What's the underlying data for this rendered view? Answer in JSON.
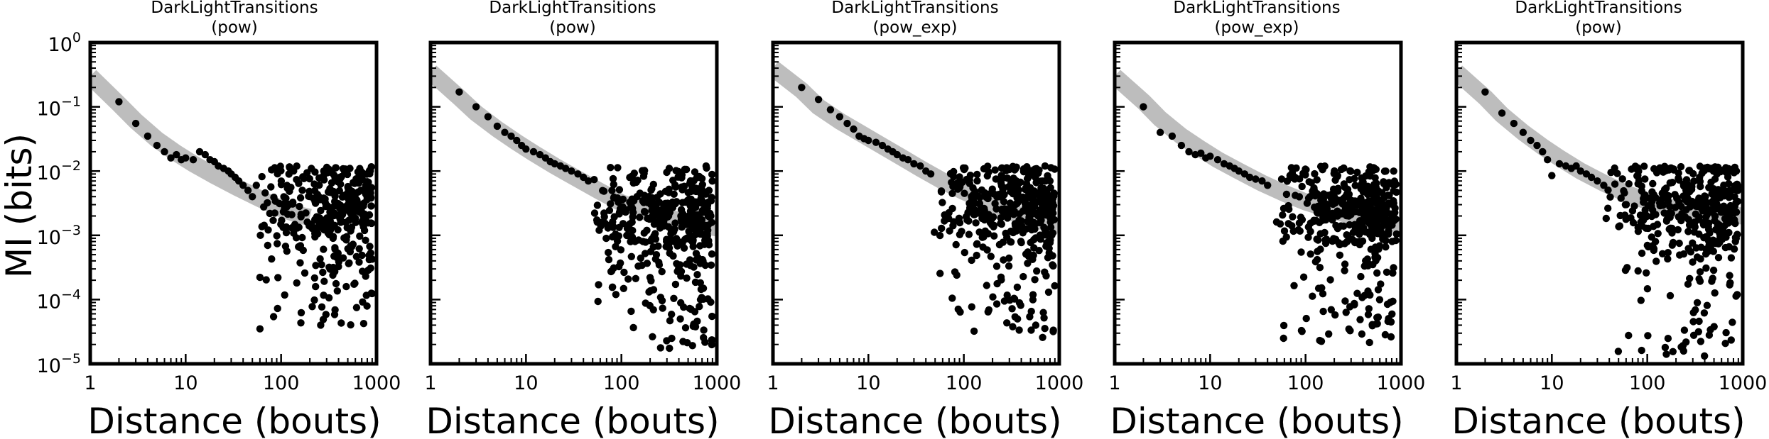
{
  "figure": {
    "ylabel": "MI (bits)",
    "xlabel": "Distance (bouts)"
  },
  "chart_data": [
    {
      "type": "scatter",
      "title_line1": "DarkLightTransitions",
      "title_line2": "(pow)",
      "xscale": "log",
      "yscale": "log",
      "xlim": [
        1,
        1000
      ],
      "ylim": [
        1e-05,
        1
      ],
      "x_ticks": [
        {
          "value": 1,
          "label": "1"
        },
        {
          "value": 10,
          "label": "10"
        },
        {
          "value": 100,
          "label": "100"
        },
        {
          "value": 1000,
          "label": "1000"
        }
      ],
      "y_ticks": [
        {
          "value": 1,
          "label": "10",
          "exp": "0"
        },
        {
          "value": 0.1,
          "label": "10",
          "exp": "−1"
        },
        {
          "value": 0.01,
          "label": "10",
          "exp": "−2"
        },
        {
          "value": 0.001,
          "label": "10",
          "exp": "−3"
        },
        {
          "value": 0.0001,
          "label": "10",
          "exp": "−4"
        },
        {
          "value": 1e-05,
          "label": "10",
          "exp": "−5"
        }
      ],
      "y_tick_labels_shown": true,
      "fit_band": {
        "color": "#bdbdbd",
        "x": [
          1,
          2,
          3,
          5,
          8,
          12,
          20,
          35,
          60,
          100,
          150,
          200
        ],
        "y": [
          0.3,
          0.11,
          0.06,
          0.031,
          0.019,
          0.013,
          0.0085,
          0.0055,
          0.0037,
          0.0026,
          0.0021,
          0.0019
        ]
      },
      "points_color": "#000000",
      "head_points": [
        [
          2,
          0.12
        ],
        [
          3,
          0.055
        ],
        [
          4,
          0.035
        ],
        [
          5,
          0.025
        ],
        [
          6,
          0.02
        ],
        [
          7,
          0.016
        ],
        [
          8,
          0.018
        ],
        [
          9,
          0.015
        ],
        [
          10,
          0.016
        ],
        [
          12,
          0.015
        ],
        [
          14,
          0.02
        ],
        [
          16,
          0.018
        ],
        [
          18,
          0.015
        ],
        [
          20,
          0.014
        ],
        [
          22,
          0.012
        ],
        [
          25,
          0.011
        ],
        [
          28,
          0.01
        ],
        [
          30,
          0.009
        ],
        [
          33,
          0.008
        ],
        [
          36,
          0.007
        ],
        [
          40,
          0.006
        ],
        [
          45,
          0.005
        ],
        [
          50,
          0.004
        ],
        [
          55,
          0.006
        ],
        [
          60,
          3.5e-05
        ]
      ],
      "cloud": {
        "x_start": 50,
        "x_end": 900,
        "count": 380,
        "median": 0.003,
        "spread": 0.7,
        "low_frac": 0.18,
        "low_min": 4e-05,
        "seed": 11
      }
    },
    {
      "type": "scatter",
      "title_line1": "DarkLightTransitions",
      "title_line2": "(pow)",
      "xscale": "log",
      "yscale": "log",
      "xlim": [
        1,
        1000
      ],
      "ylim": [
        1e-05,
        1
      ],
      "x_ticks": [
        {
          "value": 1,
          "label": "1"
        },
        {
          "value": 10,
          "label": "10"
        },
        {
          "value": 100,
          "label": "100"
        },
        {
          "value": 1000,
          "label": "1000"
        }
      ],
      "y_tick_labels_shown": false,
      "fit_band": {
        "color": "#bdbdbd",
        "x": [
          1,
          2,
          3,
          5,
          8,
          12,
          20,
          35,
          60,
          100,
          200,
          400,
          1000
        ],
        "y": [
          0.35,
          0.14,
          0.08,
          0.045,
          0.028,
          0.019,
          0.012,
          0.0075,
          0.0048,
          0.0032,
          0.0022,
          0.0017,
          0.0013
        ]
      },
      "points_color": "#000000",
      "head_points": [
        [
          2,
          0.17
        ],
        [
          3,
          0.1
        ],
        [
          4,
          0.07
        ],
        [
          5,
          0.05
        ],
        [
          6,
          0.04
        ],
        [
          7,
          0.035
        ],
        [
          8,
          0.03
        ],
        [
          9,
          0.025
        ],
        [
          10,
          0.022
        ],
        [
          12,
          0.02
        ],
        [
          14,
          0.018
        ],
        [
          16,
          0.016
        ],
        [
          18,
          0.014
        ],
        [
          20,
          0.013
        ],
        [
          23,
          0.012
        ],
        [
          26,
          0.011
        ],
        [
          30,
          0.01
        ],
        [
          35,
          0.009
        ],
        [
          40,
          0.008
        ],
        [
          45,
          0.007
        ]
      ],
      "cloud": {
        "x_start": 45,
        "x_end": 900,
        "count": 420,
        "median": 0.002,
        "spread": 0.7,
        "low_frac": 0.16,
        "low_min": 1.5e-05,
        "seed": 23
      }
    },
    {
      "type": "scatter",
      "title_line1": "DarkLightTransitions",
      "title_line2": "(pow_exp)",
      "xscale": "log",
      "yscale": "log",
      "xlim": [
        1,
        1000
      ],
      "ylim": [
        1e-05,
        1
      ],
      "x_ticks": [
        {
          "value": 1,
          "label": "1"
        },
        {
          "value": 10,
          "label": "10"
        },
        {
          "value": 100,
          "label": "100"
        },
        {
          "value": 1000,
          "label": "1000"
        }
      ],
      "y_tick_labels_shown": false,
      "fit_band": {
        "color": "#bdbdbd",
        "x": [
          1,
          2,
          3,
          5,
          8,
          12,
          20,
          35,
          60,
          100,
          200,
          400,
          1000
        ],
        "y": [
          0.4,
          0.18,
          0.1,
          0.06,
          0.04,
          0.028,
          0.018,
          0.011,
          0.007,
          0.0048,
          0.003,
          0.002,
          0.0014
        ]
      },
      "points_color": "#000000",
      "head_points": [
        [
          2,
          0.2
        ],
        [
          3,
          0.13
        ],
        [
          4,
          0.09
        ],
        [
          5,
          0.07
        ],
        [
          6,
          0.055
        ],
        [
          7,
          0.045
        ],
        [
          8,
          0.035
        ],
        [
          9,
          0.032
        ],
        [
          10,
          0.03
        ],
        [
          12,
          0.028
        ],
        [
          14,
          0.025
        ],
        [
          16,
          0.022
        ],
        [
          18,
          0.02
        ],
        [
          20,
          0.018
        ],
        [
          23,
          0.016
        ],
        [
          26,
          0.015
        ],
        [
          30,
          0.013
        ],
        [
          35,
          0.012
        ],
        [
          40,
          0.01
        ],
        [
          45,
          0.009
        ]
      ],
      "cloud": {
        "x_start": 45,
        "x_end": 900,
        "count": 420,
        "median": 0.003,
        "spread": 0.65,
        "low_frac": 0.14,
        "low_min": 2.5e-05,
        "seed": 37
      }
    },
    {
      "type": "scatter",
      "title_line1": "DarkLightTransitions",
      "title_line2": "(pow_exp)",
      "xscale": "log",
      "yscale": "log",
      "xlim": [
        1,
        1000
      ],
      "ylim": [
        1e-05,
        1
      ],
      "x_ticks": [
        {
          "value": 1,
          "label": "1"
        },
        {
          "value": 10,
          "label": "10"
        },
        {
          "value": 100,
          "label": "100"
        },
        {
          "value": 1000,
          "label": "1000"
        }
      ],
      "y_tick_labels_shown": false,
      "fit_band": {
        "color": "#bdbdbd",
        "x": [
          1,
          2,
          3,
          5,
          8,
          12,
          20,
          35,
          60,
          100,
          200,
          400,
          1000
        ],
        "y": [
          0.3,
          0.12,
          0.065,
          0.035,
          0.022,
          0.015,
          0.01,
          0.0065,
          0.0045,
          0.0033,
          0.0024,
          0.0018,
          0.0014
        ]
      },
      "points_color": "#000000",
      "head_points": [
        [
          2,
          0.1
        ],
        [
          3,
          0.04
        ],
        [
          4,
          0.035
        ],
        [
          5,
          0.025
        ],
        [
          6,
          0.02
        ],
        [
          7,
          0.018
        ],
        [
          8,
          0.019
        ],
        [
          9,
          0.016
        ],
        [
          10,
          0.017
        ],
        [
          12,
          0.015
        ],
        [
          14,
          0.013
        ],
        [
          16,
          0.012
        ],
        [
          18,
          0.011
        ],
        [
          20,
          0.01
        ],
        [
          23,
          0.009
        ],
        [
          26,
          0.008
        ],
        [
          30,
          0.0075
        ],
        [
          35,
          0.007
        ],
        [
          40,
          0.006
        ]
      ],
      "cloud": {
        "x_start": 40,
        "x_end": 900,
        "count": 420,
        "median": 0.0025,
        "spread": 0.7,
        "low_frac": 0.16,
        "low_min": 2e-05,
        "seed": 53
      }
    },
    {
      "type": "scatter",
      "title_line1": "DarkLightTransitions",
      "title_line2": "(pow)",
      "xscale": "log",
      "yscale": "log",
      "xlim": [
        1,
        1000
      ],
      "ylim": [
        1e-05,
        1
      ],
      "x_ticks": [
        {
          "value": 1,
          "label": "1"
        },
        {
          "value": 10,
          "label": "10"
        },
        {
          "value": 100,
          "label": "100"
        },
        {
          "value": 1000,
          "label": "1000"
        }
      ],
      "y_tick_labels_shown": false,
      "fit_band": {
        "color": "#bdbdbd",
        "x": [
          1,
          2,
          3,
          5,
          8,
          12,
          20,
          35,
          60,
          100,
          200,
          400,
          1000
        ],
        "y": [
          0.35,
          0.14,
          0.075,
          0.04,
          0.024,
          0.016,
          0.01,
          0.0065,
          0.0045,
          0.0034,
          0.0026,
          0.0022,
          0.002
        ]
      },
      "points_color": "#000000",
      "head_points": [
        [
          2,
          0.17
        ],
        [
          3,
          0.08
        ],
        [
          4,
          0.055
        ],
        [
          5,
          0.04
        ],
        [
          6,
          0.03
        ],
        [
          7,
          0.025
        ],
        [
          8,
          0.02
        ],
        [
          9,
          0.015
        ],
        [
          10,
          0.0085
        ],
        [
          12,
          0.013
        ],
        [
          14,
          0.012
        ],
        [
          16,
          0.011
        ],
        [
          18,
          0.012
        ],
        [
          20,
          0.01
        ],
        [
          23,
          0.009
        ],
        [
          26,
          0.008
        ],
        [
          30,
          0.007
        ],
        [
          35,
          0.006
        ]
      ],
      "cloud": {
        "x_start": 35,
        "x_end": 900,
        "count": 420,
        "median": 0.003,
        "spread": 0.7,
        "low_frac": 0.15,
        "low_min": 1.2e-05,
        "seed": 71
      }
    }
  ]
}
